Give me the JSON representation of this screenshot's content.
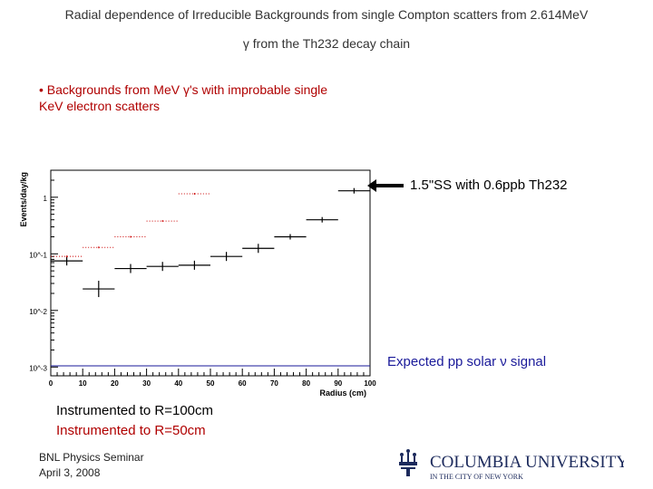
{
  "title": {
    "line1": "Radial dependence of Irreducible Backgrounds from single Compton scatters from 2.614MeV",
    "line2": "γ from the Th232 decay chain"
  },
  "bullet": "• Backgrounds from MeV γ's with improbable single KeV electron scatters",
  "annotations": {
    "arrow_label": "1.5\"SS with 0.6ppb Th232",
    "signal_label": "Expected pp solar ν signal"
  },
  "legend": {
    "instrumented_100": "Instrumented to R=100cm",
    "instrumented_50": "Instrumented to R=50cm"
  },
  "footer": {
    "line1": "BNL Physics Seminar",
    "line2": "April 3, 2008"
  },
  "logo": {
    "name": "COLUMBIA UNIVERSITY",
    "tagline": "IN THE CITY OF NEW YORK"
  },
  "chart_data": {
    "type": "scatter",
    "xlabel": "Radius (cm)",
    "ylabel": "Events/day/kg",
    "xlim": [
      0,
      100
    ],
    "ylim": [
      0.0007,
      3
    ],
    "log_y": true,
    "x_ticks": [
      "0",
      "10",
      "20",
      "30",
      "40",
      "50",
      "60",
      "70",
      "80",
      "90",
      "100"
    ],
    "y_ticks": [
      "10^-3",
      "10^-2",
      "10^-1",
      "1"
    ],
    "series": [
      {
        "name": "Instrumented to R=100cm",
        "color": "#000000",
        "points": [
          {
            "x": 5,
            "y": 0.075,
            "xerr": 5
          },
          {
            "x": 15,
            "y": 0.024,
            "xerr": 5
          },
          {
            "x": 25,
            "y": 0.055,
            "xerr": 5
          },
          {
            "x": 35,
            "y": 0.06,
            "xerr": 5
          },
          {
            "x": 45,
            "y": 0.063,
            "xerr": 5
          },
          {
            "x": 55,
            "y": 0.09,
            "xerr": 5
          },
          {
            "x": 65,
            "y": 0.125,
            "xerr": 5
          },
          {
            "x": 75,
            "y": 0.2,
            "xerr": 5
          },
          {
            "x": 85,
            "y": 0.4,
            "xerr": 5
          },
          {
            "x": 95,
            "y": 1.3,
            "xerr": 5
          }
        ]
      },
      {
        "name": "Instrumented to R=50cm",
        "color": "#cc0000",
        "points": [
          {
            "x": 5,
            "y": 0.09,
            "xerr": 5
          },
          {
            "x": 15,
            "y": 0.13,
            "xerr": 5
          },
          {
            "x": 25,
            "y": 0.2,
            "xerr": 5
          },
          {
            "x": 35,
            "y": 0.38,
            "xerr": 5
          },
          {
            "x": 45,
            "y": 1.15,
            "xerr": 5
          }
        ]
      }
    ],
    "signal_level": 0.00105
  }
}
